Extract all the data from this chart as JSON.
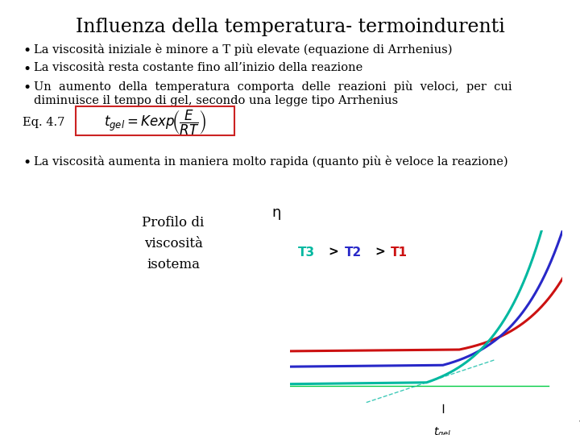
{
  "title": "Influenza della temperatura- termoindurenti",
  "bullet1": "La viscosità iniziale è minore a T più elevate (equazione di Arrhenius)",
  "bullet2": "La viscosità resta costante fino all’inizio della reazione",
  "bullet3_line1": "Un  aumento  della  temperatura  comporta  delle  reazioni  più  veloci,  per  cui",
  "bullet3_line2": "diminuisce il tempo di gel, secondo una legge tipo Arrhenius",
  "eq_label": "Eq. 4.7",
  "eq_formula": "$\\mathit{t}_{gel} = \\mathit{K}\\mathit{exp}\\!\\left(\\dfrac{E}{RT}\\right)$",
  "bullet4": "La viscosità aumenta in maniera molto rapida (quanto più è veloce la reazione)",
  "profilo_label": "Profilo di\nviscosità\nisotema",
  "eta_label": "η",
  "t_label": "t",
  "tgel_label": "$t_{gel}$",
  "T3_color": "#00b8a0",
  "T2_color": "#2828c8",
  "T1_color": "#cc1111",
  "green_line_color": "#00cc44",
  "dashed_color": "#00b8a0",
  "bg_color": "#ffffff",
  "text_color": "#000000",
  "title_fontsize": 17,
  "body_fontsize": 10.5,
  "eq_fontsize": 12
}
